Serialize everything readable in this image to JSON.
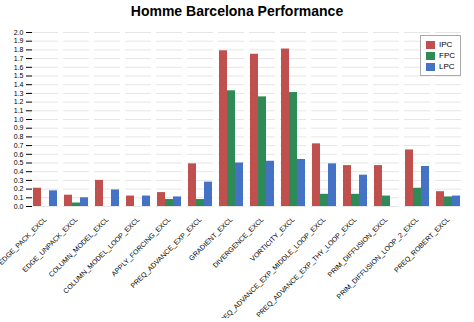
{
  "chart_data": {
    "type": "bar",
    "title": "Homme Barcelona Performance",
    "categories": [
      "EDGE_PACK_EXCL",
      "EDGE_UNPACK_EXCL",
      "COLUMN_MODEL_EXCL",
      "COLUMN_MODEL_LOOP_EXCL",
      "APPLY_FORCING_EXCL",
      "PREQ_ADVANCE_EXP_EXCL",
      "GRADIENT_EXCL",
      "DIVERGENCE_EXCL",
      "VORTICITY_EXCL",
      "PREQ_ADVANCE_EXP_MIDDLE_LOOP_EXCL",
      "PREQ_ADVANCE_EXP_THY_LOOP_EXCL",
      "PRIM_DIFFUSION_EXCL",
      "PRIM_DIFFUSION_LOOP_2_EXCL",
      "PREQ_ROBERT_EXCL"
    ],
    "series": [
      {
        "name": "IPC",
        "color": "#c0504d",
        "values": [
          0.21,
          0.13,
          0.3,
          0.12,
          0.16,
          0.49,
          1.79,
          1.75,
          1.81,
          0.72,
          0.47,
          0.47,
          0.65,
          0.17
        ]
      },
      {
        "name": "FPC",
        "color": "#2e8b57",
        "values": [
          0.0,
          0.04,
          0.0,
          0.0,
          0.08,
          0.08,
          1.33,
          1.26,
          1.31,
          0.14,
          0.14,
          0.12,
          0.21,
          0.11
        ]
      },
      {
        "name": "LPC",
        "color": "#4472c4",
        "values": [
          0.18,
          0.1,
          0.19,
          0.12,
          0.11,
          0.28,
          0.5,
          0.52,
          0.54,
          0.49,
          0.36,
          0.0,
          0.46,
          0.12
        ]
      }
    ],
    "ylim": [
      0.0,
      2.0
    ],
    "yticks": [
      {
        "value": 0.0,
        "label": "0.0"
      },
      0.1,
      0.2,
      0.3,
      0.4,
      0.5,
      0.6,
      0.7,
      0.8,
      0.9,
      {
        "value": 1.0,
        "label": "1.0"
      },
      1.1,
      1.2,
      1.3,
      1.4,
      1.5,
      1.6,
      1.7,
      1.8,
      1.9,
      {
        "value": 2.0,
        "label": "2.0"
      }
    ],
    "grid": true,
    "legend": "upper right"
  }
}
